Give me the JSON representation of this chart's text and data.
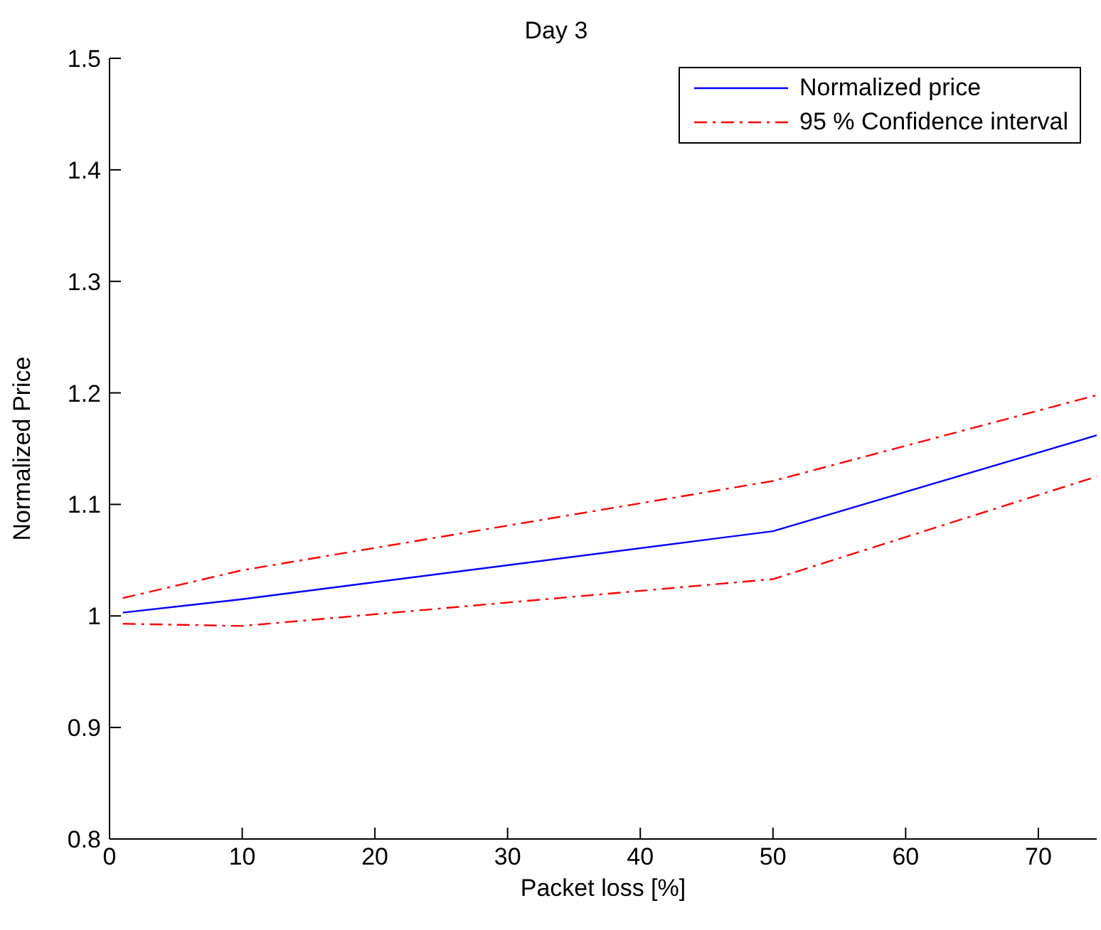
{
  "chart_data": {
    "type": "line",
    "title": "Day 3",
    "xlabel": "Packet loss [%]",
    "ylabel": "Normalized Price",
    "x": [
      1,
      10,
      50,
      74.4
    ],
    "series": [
      {
        "name": "Normalized price",
        "color": "#0000ff",
        "line_style": "solid",
        "values": [
          1.003,
          1.015,
          1.076,
          1.162
        ]
      },
      {
        "name": "95 % Confidence interval",
        "color": "#ff0000",
        "line_style": "dashdot",
        "values": [
          1.016,
          1.041,
          1.121,
          1.198
        ]
      },
      {
        "color": "#ff0000",
        "line_style": "dashdot",
        "values": [
          0.993,
          0.991,
          1.033,
          1.125
        ]
      }
    ],
    "xlim": [
      0,
      74.4
    ],
    "xticks": [
      0,
      10,
      20,
      30,
      40,
      50,
      60,
      70
    ],
    "ylim": [
      0.8,
      1.5
    ],
    "yticks": [
      0.8,
      0.9,
      1,
      1.1,
      1.2,
      1.3,
      1.4,
      1.5
    ],
    "grid": false,
    "legend": "top right",
    "marker": "none"
  }
}
